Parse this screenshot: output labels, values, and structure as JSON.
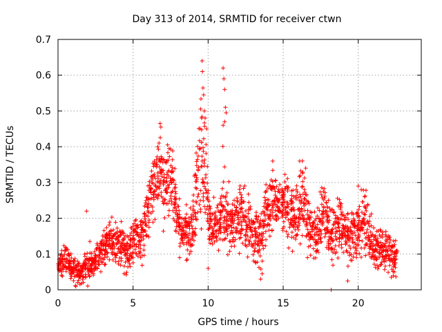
{
  "chart_data": {
    "type": "scatter",
    "title": "Day 313 of 2014, SRMTID for receiver ctwn",
    "xlabel": "GPS time / hours",
    "ylabel": "SRMTID / TECUs",
    "xlim": [
      0,
      24.2
    ],
    "ylim": [
      0,
      0.7
    ],
    "xticks": [
      0,
      5,
      10,
      15,
      20
    ],
    "xtick_labels": [
      "0",
      "5",
      "10",
      "15",
      "20"
    ],
    "yticks": [
      0,
      0.1,
      0.2,
      0.3,
      0.4,
      0.5,
      0.6,
      0.7
    ],
    "ytick_labels": [
      "0",
      "0.1",
      "0.2",
      "0.3",
      "0.4",
      "0.5",
      "0.6",
      "0.7"
    ],
    "grid": true,
    "marker": "+",
    "color": "#ff0000",
    "series": [
      {
        "name": "ctwn",
        "x": [
          0.0,
          0.2,
          0.4,
          0.6,
          0.8,
          1.0,
          1.2,
          1.4,
          1.6,
          1.8,
          2.0,
          2.2,
          2.4,
          2.6,
          2.8,
          3.0,
          3.2,
          3.4,
          3.6,
          3.8,
          4.0,
          4.2,
          4.4,
          4.6,
          4.8,
          5.0,
          5.2,
          5.4,
          5.6,
          5.8,
          6.0,
          6.2,
          6.4,
          6.6,
          6.8,
          7.0,
          7.2,
          7.4,
          7.6,
          7.8,
          8.0,
          8.2,
          8.4,
          8.6,
          8.8,
          9.0,
          9.2,
          9.4,
          9.6,
          9.8,
          10.0,
          10.2,
          10.4,
          10.6,
          10.8,
          11.0,
          11.2,
          11.4,
          11.6,
          11.8,
          12.0,
          12.2,
          12.4,
          12.6,
          12.8,
          13.0,
          13.2,
          13.4,
          13.6,
          13.8,
          14.0,
          14.2,
          14.4,
          14.6,
          14.8,
          15.0,
          15.2,
          15.4,
          15.6,
          15.8,
          16.0,
          16.2,
          16.4,
          16.6,
          16.8,
          17.0,
          17.2,
          17.4,
          17.6,
          17.8,
          18.0,
          18.2,
          18.4,
          18.6,
          18.8,
          19.0,
          19.2,
          19.4,
          19.6,
          19.8,
          20.0,
          20.2,
          20.4,
          20.6,
          20.8,
          21.0,
          21.2,
          21.4,
          21.6,
          21.8,
          22.0,
          22.2,
          22.4,
          22.6
        ],
        "center": [
          0.07,
          0.07,
          0.08,
          0.09,
          0.07,
          0.06,
          0.05,
          0.05,
          0.05,
          0.06,
          0.08,
          0.08,
          0.07,
          0.09,
          0.1,
          0.12,
          0.13,
          0.14,
          0.14,
          0.13,
          0.12,
          0.12,
          0.11,
          0.1,
          0.12,
          0.14,
          0.15,
          0.13,
          0.15,
          0.19,
          0.23,
          0.26,
          0.28,
          0.32,
          0.35,
          0.3,
          0.27,
          0.3,
          0.29,
          0.25,
          0.2,
          0.16,
          0.15,
          0.17,
          0.16,
          0.2,
          0.27,
          0.36,
          0.4,
          0.3,
          0.22,
          0.19,
          0.18,
          0.19,
          0.2,
          0.24,
          0.22,
          0.2,
          0.18,
          0.19,
          0.21,
          0.22,
          0.2,
          0.18,
          0.17,
          0.16,
          0.15,
          0.14,
          0.17,
          0.2,
          0.22,
          0.26,
          0.25,
          0.24,
          0.23,
          0.24,
          0.24,
          0.22,
          0.21,
          0.2,
          0.22,
          0.26,
          0.24,
          0.2,
          0.17,
          0.15,
          0.14,
          0.16,
          0.2,
          0.21,
          0.17,
          0.15,
          0.16,
          0.17,
          0.19,
          0.16,
          0.14,
          0.15,
          0.15,
          0.15,
          0.17,
          0.18,
          0.2,
          0.17,
          0.14,
          0.12,
          0.11,
          0.12,
          0.12,
          0.11,
          0.1,
          0.1,
          0.1,
          0.09
        ],
        "spread": [
          0.025,
          0.025,
          0.025,
          0.025,
          0.025,
          0.025,
          0.025,
          0.02,
          0.02,
          0.03,
          0.04,
          0.03,
          0.025,
          0.03,
          0.03,
          0.035,
          0.035,
          0.035,
          0.04,
          0.04,
          0.04,
          0.04,
          0.04,
          0.04,
          0.04,
          0.045,
          0.045,
          0.04,
          0.05,
          0.05,
          0.06,
          0.06,
          0.07,
          0.08,
          0.08,
          0.08,
          0.07,
          0.07,
          0.07,
          0.06,
          0.05,
          0.04,
          0.04,
          0.05,
          0.05,
          0.06,
          0.08,
          0.12,
          0.12,
          0.1,
          0.06,
          0.05,
          0.05,
          0.06,
          0.06,
          0.1,
          0.07,
          0.06,
          0.05,
          0.05,
          0.06,
          0.06,
          0.06,
          0.05,
          0.05,
          0.05,
          0.05,
          0.05,
          0.06,
          0.06,
          0.06,
          0.06,
          0.06,
          0.05,
          0.05,
          0.05,
          0.06,
          0.06,
          0.06,
          0.06,
          0.06,
          0.08,
          0.07,
          0.06,
          0.05,
          0.05,
          0.05,
          0.05,
          0.06,
          0.06,
          0.05,
          0.05,
          0.05,
          0.05,
          0.06,
          0.05,
          0.05,
          0.05,
          0.05,
          0.05,
          0.06,
          0.06,
          0.07,
          0.06,
          0.05,
          0.04,
          0.04,
          0.04,
          0.04,
          0.04,
          0.035,
          0.035,
          0.035,
          0.035
        ],
        "outliers": [
          {
            "x": 0.85,
            "y": 0.032
          },
          {
            "x": 1.3,
            "y": 0.02
          },
          {
            "x": 1.9,
            "y": 0.22
          },
          {
            "x": 4.4,
            "y": 0.045
          },
          {
            "x": 6.8,
            "y": 0.465
          },
          {
            "x": 6.85,
            "y": 0.455
          },
          {
            "x": 7.3,
            "y": 0.405
          },
          {
            "x": 7.4,
            "y": 0.395
          },
          {
            "x": 8.1,
            "y": 0.09
          },
          {
            "x": 8.6,
            "y": 0.085
          },
          {
            "x": 9.6,
            "y": 0.64
          },
          {
            "x": 9.62,
            "y": 0.61
          },
          {
            "x": 9.7,
            "y": 0.545
          },
          {
            "x": 9.75,
            "y": 0.5
          },
          {
            "x": 9.8,
            "y": 0.48
          },
          {
            "x": 9.9,
            "y": 0.45
          },
          {
            "x": 10.0,
            "y": 0.06
          },
          {
            "x": 11.0,
            "y": 0.62
          },
          {
            "x": 11.05,
            "y": 0.59
          },
          {
            "x": 11.1,
            "y": 0.56
          },
          {
            "x": 11.15,
            "y": 0.51
          },
          {
            "x": 11.2,
            "y": 0.495
          },
          {
            "x": 11.1,
            "y": 0.47
          },
          {
            "x": 11.0,
            "y": 0.46
          },
          {
            "x": 13.5,
            "y": 0.03
          },
          {
            "x": 13.6,
            "y": 0.045
          },
          {
            "x": 14.3,
            "y": 0.36
          },
          {
            "x": 16.1,
            "y": 0.36
          },
          {
            "x": 16.5,
            "y": 0.34
          },
          {
            "x": 18.2,
            "y": 0.0
          },
          {
            "x": 19.3,
            "y": 0.025
          },
          {
            "x": 20.0,
            "y": 0.29
          },
          {
            "x": 20.2,
            "y": 0.28
          },
          {
            "x": 22.2,
            "y": 0.035
          },
          {
            "x": 22.4,
            "y": 0.05
          }
        ]
      }
    ]
  }
}
